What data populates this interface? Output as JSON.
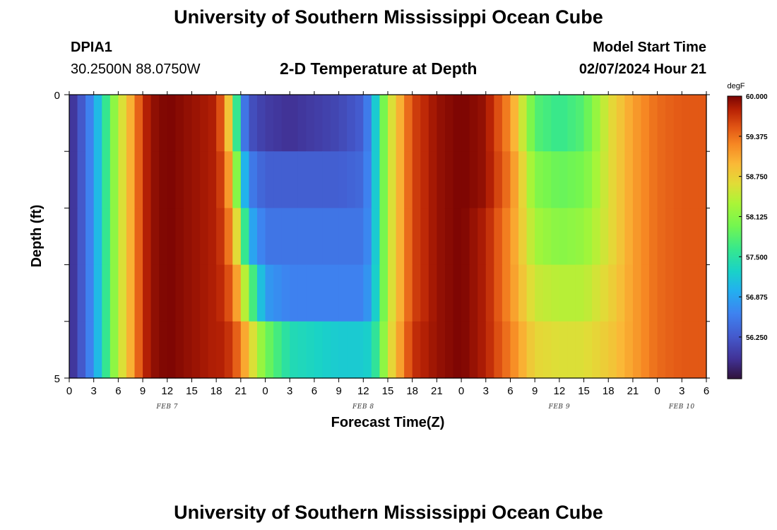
{
  "header": {
    "title": "University of Southern Mississippi Ocean Cube",
    "station": "DPIA1",
    "coordinates": "30.2500N  88.0750W",
    "subtitle": "2-D Temperature at Depth",
    "model_start_label": "Model Start Time",
    "model_start_value": "02/07/2024 Hour 21"
  },
  "footer": {
    "title": "University of Southern Mississippi Ocean Cube"
  },
  "chart_data": {
    "type": "heatmap",
    "title": "2-D Temperature at Depth",
    "xlabel": "Forecast Time(Z)",
    "ylabel": "Depth (ft)",
    "x_range_hours": [
      0,
      78
    ],
    "x_tick_labels": [
      "0",
      "3",
      "6",
      "9",
      "12",
      "15",
      "18",
      "21",
      "0",
      "3",
      "6",
      "9",
      "12",
      "15",
      "18",
      "21",
      "0",
      "3",
      "6",
      "9",
      "12",
      "15",
      "18",
      "21",
      "0",
      "3",
      "6"
    ],
    "date_labels": [
      {
        "text": "FEB 7",
        "hour": 12
      },
      {
        "text": "FEB 8",
        "hour": 36
      },
      {
        "text": "FEB 9",
        "hour": 60
      },
      {
        "text": "FEB 10",
        "hour": 75
      }
    ],
    "y_range": [
      0,
      5
    ],
    "y_tick_labels": [
      "0",
      "5"
    ],
    "depth_rows": 5,
    "colorbar": {
      "unit": "degF",
      "min": 55.6,
      "max": 60.0,
      "labels": [
        "60.000",
        "59.375",
        "58.750",
        "58.125",
        "57.500",
        "56.875",
        "56.250"
      ],
      "label_values": [
        60.0,
        59.375,
        58.75,
        58.125,
        57.5,
        56.875,
        56.25
      ]
    },
    "key_times": [
      0,
      2,
      3,
      4,
      5,
      6,
      8,
      9,
      10,
      12,
      15,
      18,
      19,
      20,
      21,
      22,
      24,
      27,
      30,
      33,
      36,
      37,
      38,
      39,
      40,
      41,
      42,
      45,
      48,
      51,
      54,
      57,
      60,
      63,
      66,
      69,
      72,
      75,
      78
    ],
    "rows": [
      [
        55.8,
        56.4,
        56.8,
        57.3,
        57.9,
        58.4,
        59.2,
        59.7,
        59.9,
        60.0,
        59.9,
        59.8,
        59.3,
        58.4,
        56.8,
        56.2,
        56.0,
        55.9,
        56.0,
        56.1,
        56.3,
        56.8,
        57.6,
        58.4,
        58.8,
        59.2,
        59.6,
        59.9,
        60.0,
        59.9,
        59.2,
        57.8,
        57.6,
        57.8,
        58.6,
        59.1,
        59.4,
        59.5,
        59.5
      ],
      [
        55.8,
        56.4,
        56.8,
        57.3,
        57.9,
        58.4,
        59.2,
        59.7,
        59.9,
        60.0,
        59.9,
        59.8,
        59.5,
        58.8,
        57.4,
        56.6,
        56.3,
        56.3,
        56.3,
        56.3,
        56.4,
        56.8,
        57.6,
        58.4,
        58.8,
        59.2,
        59.6,
        59.9,
        60.0,
        59.9,
        59.3,
        58.1,
        57.9,
        58.0,
        58.6,
        59.1,
        59.4,
        59.5,
        59.5
      ],
      [
        55.8,
        56.4,
        56.8,
        57.3,
        57.9,
        58.4,
        59.2,
        59.7,
        59.9,
        60.0,
        59.9,
        59.8,
        59.6,
        59.1,
        58.2,
        57.0,
        56.5,
        56.5,
        56.5,
        56.5,
        56.5,
        56.8,
        57.6,
        58.4,
        58.8,
        59.2,
        59.6,
        59.9,
        60.0,
        59.8,
        59.2,
        58.3,
        58.1,
        58.2,
        58.6,
        59.1,
        59.4,
        59.5,
        59.5
      ],
      [
        55.8,
        56.4,
        56.8,
        57.3,
        57.9,
        58.4,
        59.2,
        59.7,
        59.9,
        60.0,
        59.9,
        59.8,
        59.7,
        59.4,
        58.8,
        58.0,
        56.8,
        56.6,
        56.6,
        56.6,
        56.6,
        56.9,
        57.6,
        58.4,
        58.8,
        59.2,
        59.6,
        59.9,
        60.0,
        59.8,
        59.2,
        58.5,
        58.4,
        58.4,
        58.7,
        59.1,
        59.4,
        59.5,
        59.5
      ],
      [
        55.8,
        56.4,
        56.8,
        57.3,
        57.9,
        58.4,
        59.2,
        59.7,
        59.9,
        60.0,
        59.9,
        59.8,
        59.8,
        59.6,
        59.3,
        58.8,
        58.0,
        57.4,
        57.3,
        57.2,
        57.2,
        57.3,
        57.8,
        58.5,
        58.9,
        59.3,
        59.7,
        59.9,
        60.0,
        59.8,
        59.3,
        58.7,
        58.6,
        58.6,
        58.8,
        59.1,
        59.4,
        59.5,
        59.5
      ]
    ]
  }
}
